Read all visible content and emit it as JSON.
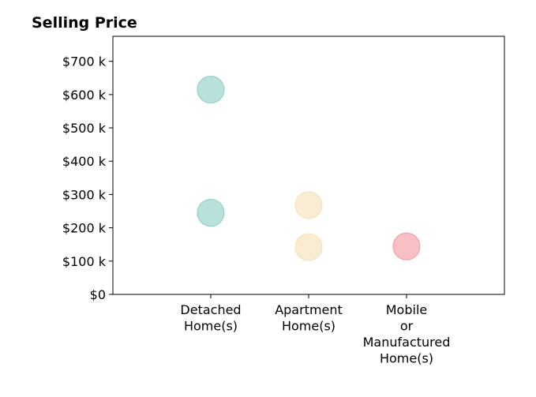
{
  "chart_data": {
    "type": "scatter",
    "title": "Selling Price",
    "xlabel": "",
    "ylabel": "",
    "categories": [
      [
        "Detached",
        "Home(s)"
      ],
      [
        "Apartment",
        "Home(s)"
      ],
      [
        "Mobile",
        "or",
        "Manufactured",
        "Home(s)"
      ]
    ],
    "xlim": [
      -1,
      3
    ],
    "ylim": [
      0,
      775000
    ],
    "yticks": [
      0,
      100000,
      200000,
      300000,
      400000,
      500000,
      600000,
      700000
    ],
    "ytick_labels": [
      "$0",
      "$100 k",
      "$200 k",
      "$300 k",
      "$400 k",
      "$500 k",
      "$600 k",
      "$700 k"
    ],
    "grid": false,
    "points": [
      {
        "category": 0,
        "value": 615000,
        "color": "#7fc8bf"
      },
      {
        "category": 0,
        "value": 245000,
        "color": "#7fc8bf"
      },
      {
        "category": 1,
        "value": 268000,
        "color": "#f4ddae"
      },
      {
        "category": 1,
        "value": 142000,
        "color": "#f4ddae"
      },
      {
        "category": 2,
        "value": 144000,
        "color": "#f28b95"
      }
    ]
  }
}
